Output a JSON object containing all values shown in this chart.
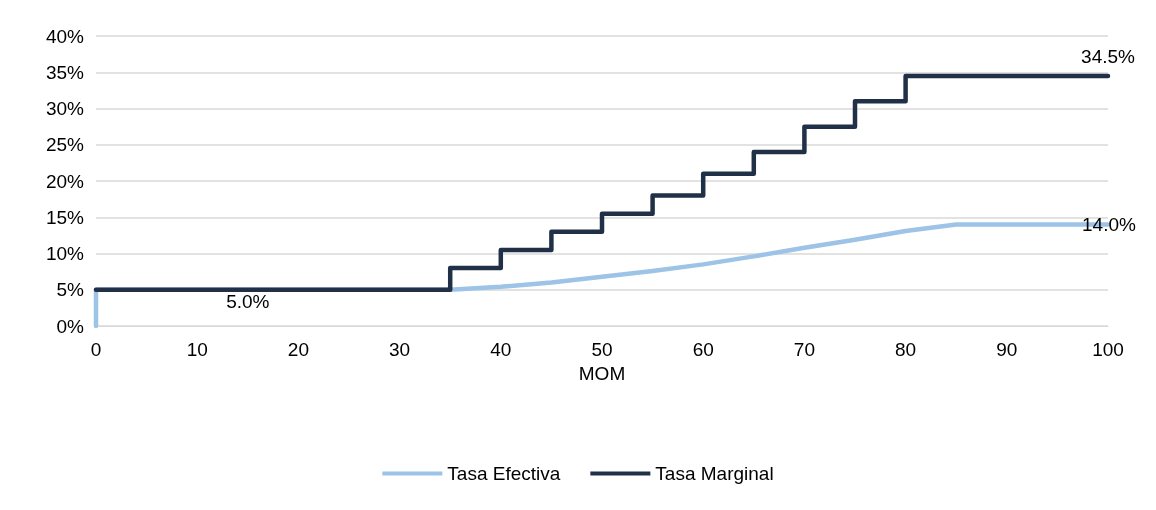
{
  "chart_data": {
    "type": "line",
    "xlabel": "MOM",
    "xlim": [
      0,
      100
    ],
    "xticks": [
      0,
      10,
      20,
      30,
      40,
      50,
      60,
      70,
      80,
      90,
      100
    ],
    "ylim": [
      0,
      40
    ],
    "yticks": [
      {
        "value": 0,
        "label": "0%"
      },
      {
        "value": 5,
        "label": "5%"
      },
      {
        "value": 10,
        "label": "10%"
      },
      {
        "value": 15,
        "label": "15%"
      },
      {
        "value": 20,
        "label": "20%"
      },
      {
        "value": 25,
        "label": "25%"
      },
      {
        "value": 30,
        "label": "30%"
      },
      {
        "value": 35,
        "label": "35%"
      },
      {
        "value": 40,
        "label": "40%"
      }
    ],
    "grid": "y",
    "legend": "bottom",
    "marker": "none",
    "line_style": "solid",
    "series": [
      {
        "name": "Tasa Efectiva",
        "color": "#9dc3e6",
        "x": [
          0,
          0,
          15,
          35,
          40,
          45,
          50,
          55,
          60,
          65,
          70,
          75,
          80,
          85,
          100
        ],
        "values": [
          0,
          5,
          5,
          5,
          5.4,
          6.0,
          6.8,
          7.6,
          8.5,
          9.6,
          10.8,
          11.9,
          13.1,
          14.0,
          14.0
        ],
        "value_labels": [
          null,
          null,
          "5.0%",
          null,
          null,
          null,
          null,
          null,
          null,
          null,
          null,
          null,
          null,
          null,
          "14.0%"
        ]
      },
      {
        "name": "Tasa Marginal",
        "type": "step",
        "color": "#203047",
        "x": [
          0,
          35,
          40,
          45,
          50,
          55,
          60,
          65,
          70,
          75,
          80,
          100
        ],
        "values": [
          5,
          8.0,
          10.5,
          13.0,
          15.5,
          18.0,
          21.0,
          24.0,
          27.5,
          31.0,
          34.5,
          34.5
        ],
        "value_labels": [
          null,
          null,
          null,
          null,
          null,
          null,
          null,
          null,
          null,
          null,
          null,
          "34.5%"
        ]
      }
    ]
  }
}
